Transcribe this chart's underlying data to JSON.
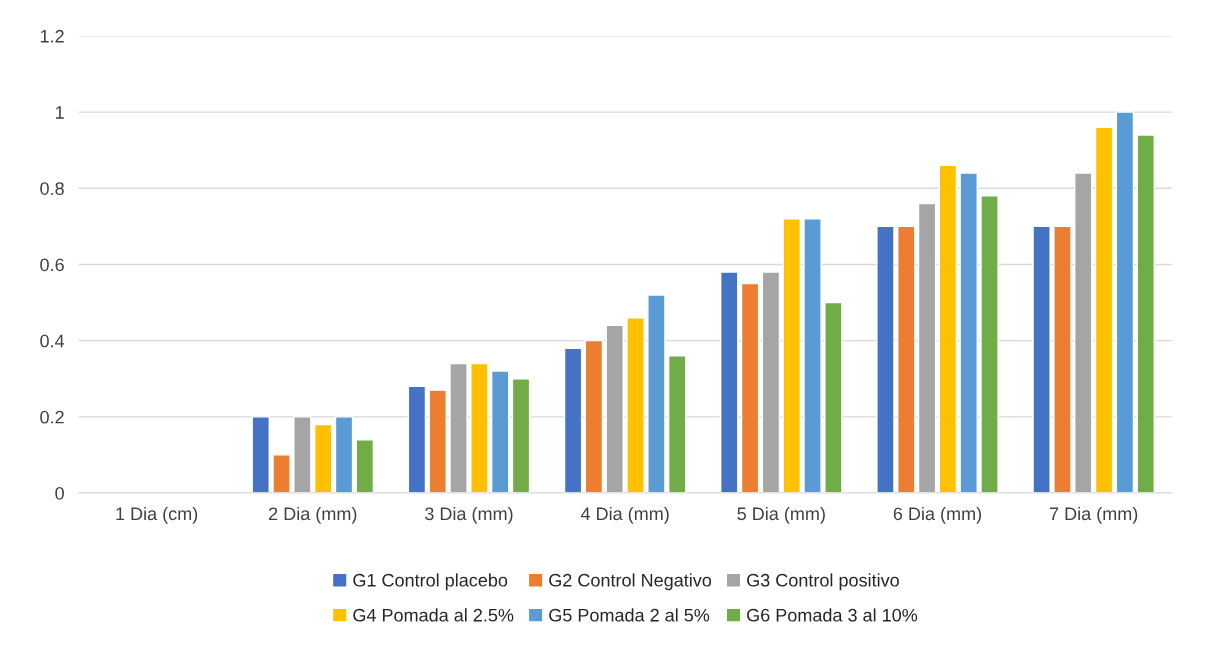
{
  "chart_data": {
    "type": "bar",
    "categories": [
      "1 Dia (cm)",
      "2 Dia (mm)",
      "3 Dia (mm)",
      "4 Dia (mm)",
      "5 Dia (mm)",
      "6 Dia (mm)",
      "7 Dia (mm)"
    ],
    "series": [
      {
        "name": "G1 Control placebo",
        "color": "#4472c4",
        "values": [
          null,
          0.2,
          0.28,
          0.38,
          0.58,
          0.7,
          0.7
        ]
      },
      {
        "name": "G2 Control Negativo",
        "color": "#ed7d31",
        "values": [
          null,
          0.1,
          0.27,
          0.4,
          0.55,
          0.7,
          0.7
        ]
      },
      {
        "name": "G3 Control positivo",
        "color": "#a5a5a5",
        "values": [
          null,
          0.2,
          0.34,
          0.44,
          0.58,
          0.76,
          0.84
        ]
      },
      {
        "name": "G4 Pomada al 2.5%",
        "color": "#ffc000",
        "values": [
          null,
          0.18,
          0.34,
          0.46,
          0.72,
          0.86,
          0.96
        ]
      },
      {
        "name": "G5 Pomada 2 al 5%",
        "color": "#5b9bd5",
        "values": [
          null,
          0.2,
          0.32,
          0.52,
          0.72,
          0.84,
          1.0
        ]
      },
      {
        "name": "G6 Pomada 3 al 10%",
        "color": "#70ad47",
        "values": [
          null,
          0.14,
          0.3,
          0.36,
          0.5,
          0.78,
          0.94
        ]
      }
    ],
    "ylim": [
      0,
      1.2
    ],
    "yticks": [
      0,
      0.2,
      0.4,
      0.6,
      0.8,
      1,
      1.2
    ],
    "grid": "y",
    "legend": "bottom"
  }
}
